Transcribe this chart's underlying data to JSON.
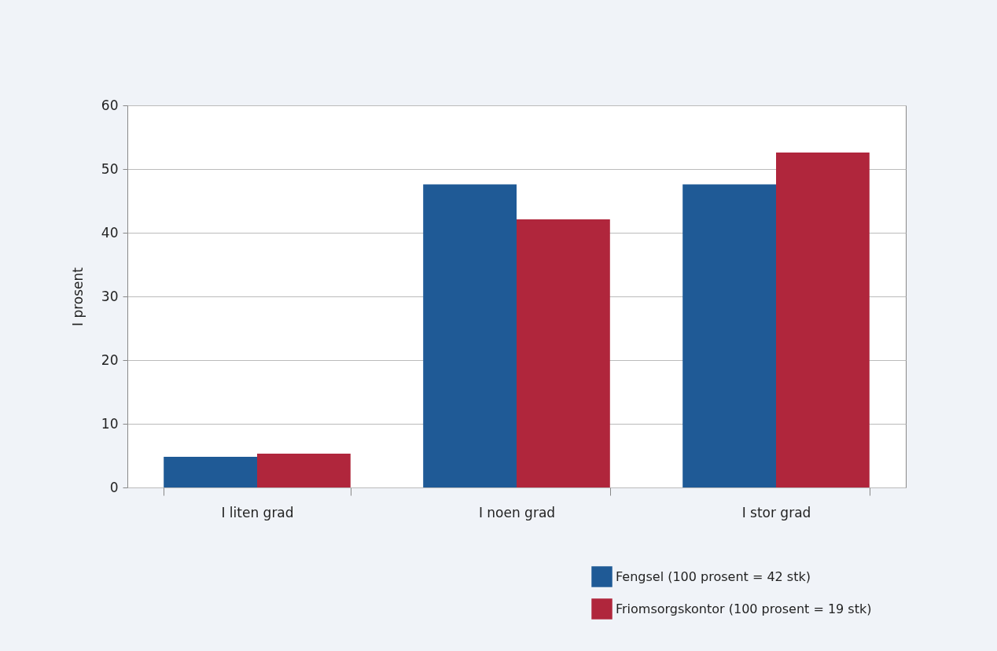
{
  "chart_data": {
    "type": "bar",
    "ylabel": "I prosent",
    "categories": [
      "I liten grad",
      "I noen grad",
      "I stor grad"
    ],
    "series": [
      {
        "name": "Fengsel (100 prosent = 42 stk)",
        "color": "#1f5a96",
        "values": [
          4.8,
          47.6,
          47.6
        ]
      },
      {
        "name": "Friomsorgskontor (100 prosent = 19 stk)",
        "color": "#b0263c",
        "values": [
          5.3,
          42.1,
          52.6
        ]
      }
    ],
    "ylim": [
      0,
      60
    ],
    "yticks": [
      0,
      10,
      20,
      30,
      40,
      50,
      60
    ],
    "grid": "y",
    "legend": "bottom right"
  }
}
